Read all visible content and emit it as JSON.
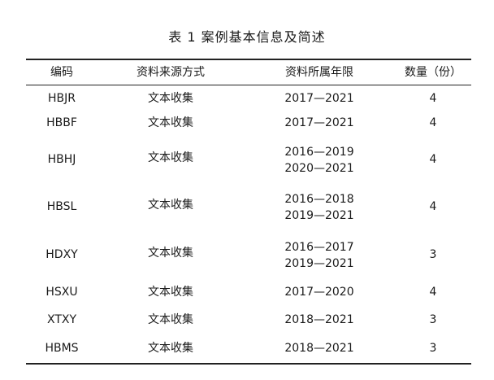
{
  "caption": "表 1   案例基本信息及简述",
  "headers": {
    "code": "编码",
    "source": "资料来源方式",
    "years": "资料所属年限",
    "count": "数量（份）"
  },
  "rows": [
    {
      "code": "HBJR",
      "source": "文本收集",
      "years": [
        "2017—2021"
      ],
      "count": "4"
    },
    {
      "code": "HBBF",
      "source": "文本收集",
      "years": [
        "2017—2021"
      ],
      "count": "4"
    },
    {
      "code": "HBHJ",
      "source": "文本收集",
      "years": [
        "2016—2019",
        "2020—2021"
      ],
      "count": "4"
    },
    {
      "code": "HBSL",
      "source": "文本收集",
      "years": [
        "2016—2018",
        "2019—2021"
      ],
      "count": "4"
    },
    {
      "code": "HDXY",
      "source": "文本收集",
      "years": [
        "2016—2017",
        "2019—2021"
      ],
      "count": "3"
    },
    {
      "code": "HSXU",
      "source": "文本收集",
      "years": [
        "2017—2020"
      ],
      "count": "4"
    },
    {
      "code": "XTXY",
      "source": "文本收集",
      "years": [
        "2018—2021"
      ],
      "count": "3"
    },
    {
      "code": "HBMS",
      "source": "文本收集",
      "years": [
        "2018—2021"
      ],
      "count": "3"
    }
  ]
}
